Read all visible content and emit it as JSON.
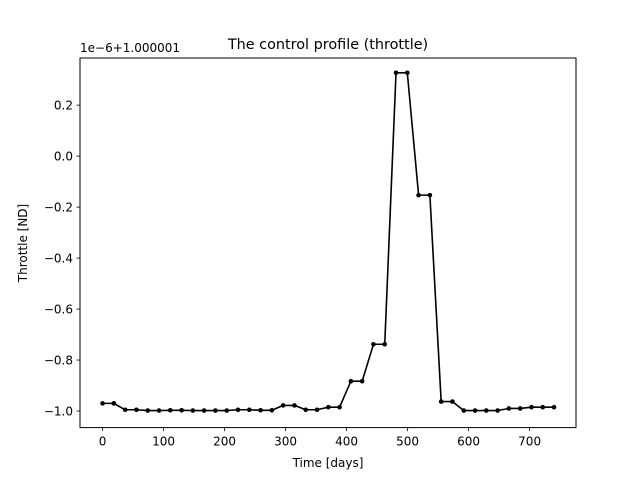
{
  "chart_data": {
    "type": "line",
    "title": "The control profile (throttle)",
    "xlabel": "Time [days]",
    "ylabel": "Throttle [ND]",
    "offset_label": "1e−6+1.000001",
    "xlim": [
      -37,
      776
    ],
    "ylim": [
      -1.065,
      0.385
    ],
    "xticks": [
      0,
      100,
      200,
      300,
      400,
      500,
      600,
      700
    ],
    "xtick_labels": [
      "0",
      "100",
      "200",
      "300",
      "400",
      "500",
      "600",
      "700"
    ],
    "yticks": [
      -1.0,
      -0.8,
      -0.6,
      -0.4,
      -0.2,
      0.0,
      0.2
    ],
    "ytick_labels": [
      "−1.0",
      "−0.8",
      "−0.6",
      "−0.4",
      "−0.2",
      "0.0",
      "0.2"
    ],
    "grid": false,
    "series": [
      {
        "color": "#000000",
        "marker": "circle",
        "x": [
          0,
          18.5,
          18.5,
          37,
          55.5,
          74,
          92.5,
          111,
          129.5,
          148,
          166.5,
          185,
          203.5,
          222,
          240.5,
          259,
          277.5,
          296,
          314.5,
          333,
          351.5,
          370,
          388.5,
          407,
          425.5,
          444,
          462.5,
          481,
          499.5,
          518,
          536.5,
          555,
          573.5,
          592,
          610.5,
          629,
          647.5,
          666,
          684.5,
          703,
          721.5,
          740
        ],
        "y": [
          -0.97,
          -0.97,
          -0.97,
          -0.995,
          -0.995,
          -0.998,
          -0.998,
          -0.997,
          -0.997,
          -0.998,
          -0.998,
          -0.998,
          -0.998,
          -0.995,
          -0.995,
          -0.997,
          -0.997,
          -0.978,
          -0.978,
          -0.995,
          -0.995,
          -0.985,
          -0.985,
          -0.883,
          -0.883,
          -0.738,
          -0.738,
          0.327,
          0.327,
          -0.153,
          -0.153,
          -0.963,
          -0.963,
          -0.998,
          -0.998,
          -0.998,
          -0.998,
          -0.99,
          -0.99,
          -0.985,
          -0.985,
          -0.985
        ]
      }
    ]
  }
}
